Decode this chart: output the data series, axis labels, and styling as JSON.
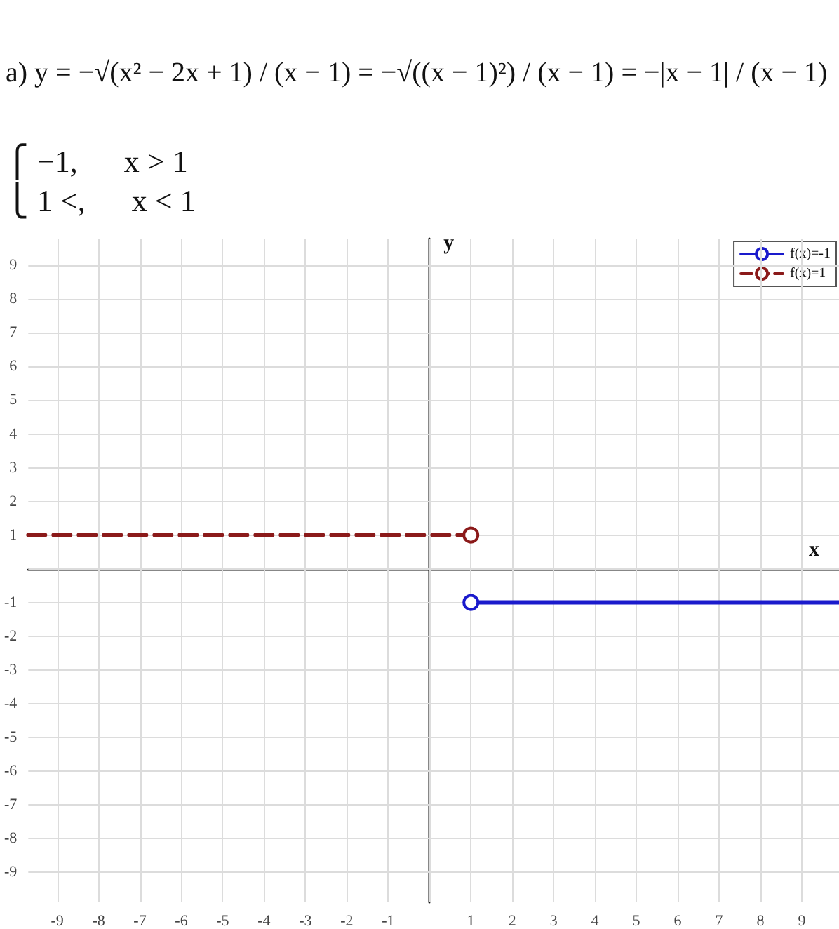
{
  "chart_data": {
    "type": "line",
    "title": "a) y = −√(x² − 2x + 1) / (x − 1) = −√((x − 1)²) / (x − 1) = −|x − 1| / (x − 1)",
    "annotations": [
      "⎧ −1,      x > 1",
      "⎩ 1 <,      x < 1"
    ],
    "xlabel": "x",
    "ylabel": "y",
    "series": [
      {
        "name": "f(x)=-1",
        "color": "#1a1acc",
        "x": [
          1,
          9.9
        ],
        "values": [
          -1,
          -1
        ],
        "line_style": "solid"
      },
      {
        "name": "f(x)=1",
        "color": "#8b1a1a",
        "x": [
          -9.7,
          1
        ],
        "values": [
          1,
          1
        ],
        "line_style": "dashed"
      }
    ],
    "xlim": [
      -9.7,
      9.9
    ],
    "ylim": [
      -9.9,
      9.8
    ],
    "xticks": [
      -9,
      -8,
      -7,
      -6,
      -5,
      -4,
      -3,
      -2,
      -1,
      1,
      2,
      3,
      4,
      5,
      6,
      7,
      8,
      9
    ],
    "yticks": [
      -9,
      -8,
      -7,
      -6,
      -5,
      -4,
      -3,
      -2,
      -1,
      1,
      2,
      3,
      4,
      5,
      6,
      7,
      8,
      9
    ],
    "grid": true,
    "legend": "top right",
    "marker": "circle"
  }
}
